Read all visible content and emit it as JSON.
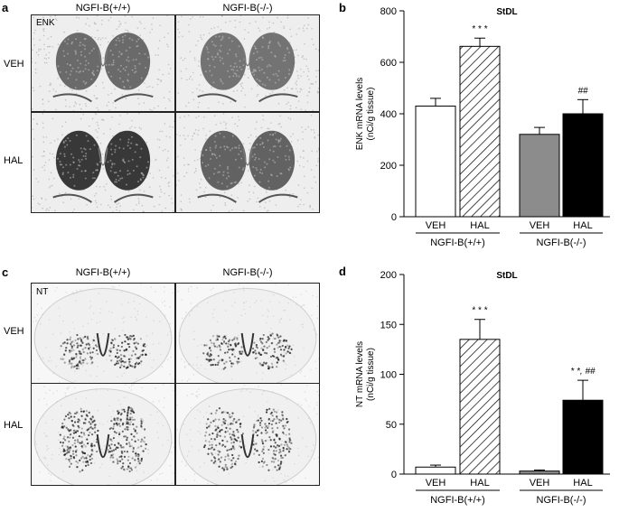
{
  "panels": {
    "a": {
      "letter": "a",
      "marker": "ENK",
      "col_headers": [
        "NGFI-B(+/+)",
        "NGFI-B(-/-)"
      ],
      "row_headers": [
        "VEH",
        "HAL"
      ]
    },
    "c": {
      "letter": "c",
      "marker": "NT",
      "col_headers": [
        "NGFI-B(+/+)",
        "NGFI-B(-/-)"
      ],
      "row_headers": [
        "VEH",
        "HAL"
      ]
    }
  },
  "chart_data": [
    {
      "letter": "b",
      "type": "bar",
      "title": "StDL",
      "ylabel_lines": [
        "ENK mRNA levels",
        "(nCi/g tissue)"
      ],
      "ylim": [
        0,
        800
      ],
      "yticks": [
        0,
        200,
        400,
        600,
        800
      ],
      "categories": [
        "VEH",
        "HAL",
        "VEH",
        "HAL"
      ],
      "groups": [
        "NGFI-B(+/+)",
        "NGFI-B(-/-)"
      ],
      "values": [
        430,
        662,
        320,
        400
      ],
      "errors": [
        30,
        32,
        27,
        55
      ],
      "fills": [
        "white",
        "hatch",
        "gray",
        "black"
      ],
      "annotations": [
        "",
        "* * *",
        "",
        "##"
      ]
    },
    {
      "letter": "d",
      "type": "bar",
      "title": "StDL",
      "ylabel_lines": [
        "NT mRNA levels",
        "(nCi/g tissue)"
      ],
      "ylim": [
        0,
        200
      ],
      "yticks": [
        0,
        50,
        100,
        150,
        200
      ],
      "categories": [
        "VEH",
        "HAL",
        "VEH",
        "HAL"
      ],
      "groups": [
        "NGFI-B(+/+)",
        "NGFI-B(-/-)"
      ],
      "values": [
        7,
        135,
        3,
        74
      ],
      "errors": [
        2,
        20,
        1,
        20
      ],
      "fills": [
        "white",
        "hatch",
        "gray",
        "black"
      ],
      "annotations": [
        "",
        "* * *",
        "",
        "* *, ##"
      ]
    }
  ],
  "colors": {
    "gray_bar": "#8c8c8c",
    "black_bar": "#000000",
    "tissue_dark": "#2a2a2a"
  }
}
